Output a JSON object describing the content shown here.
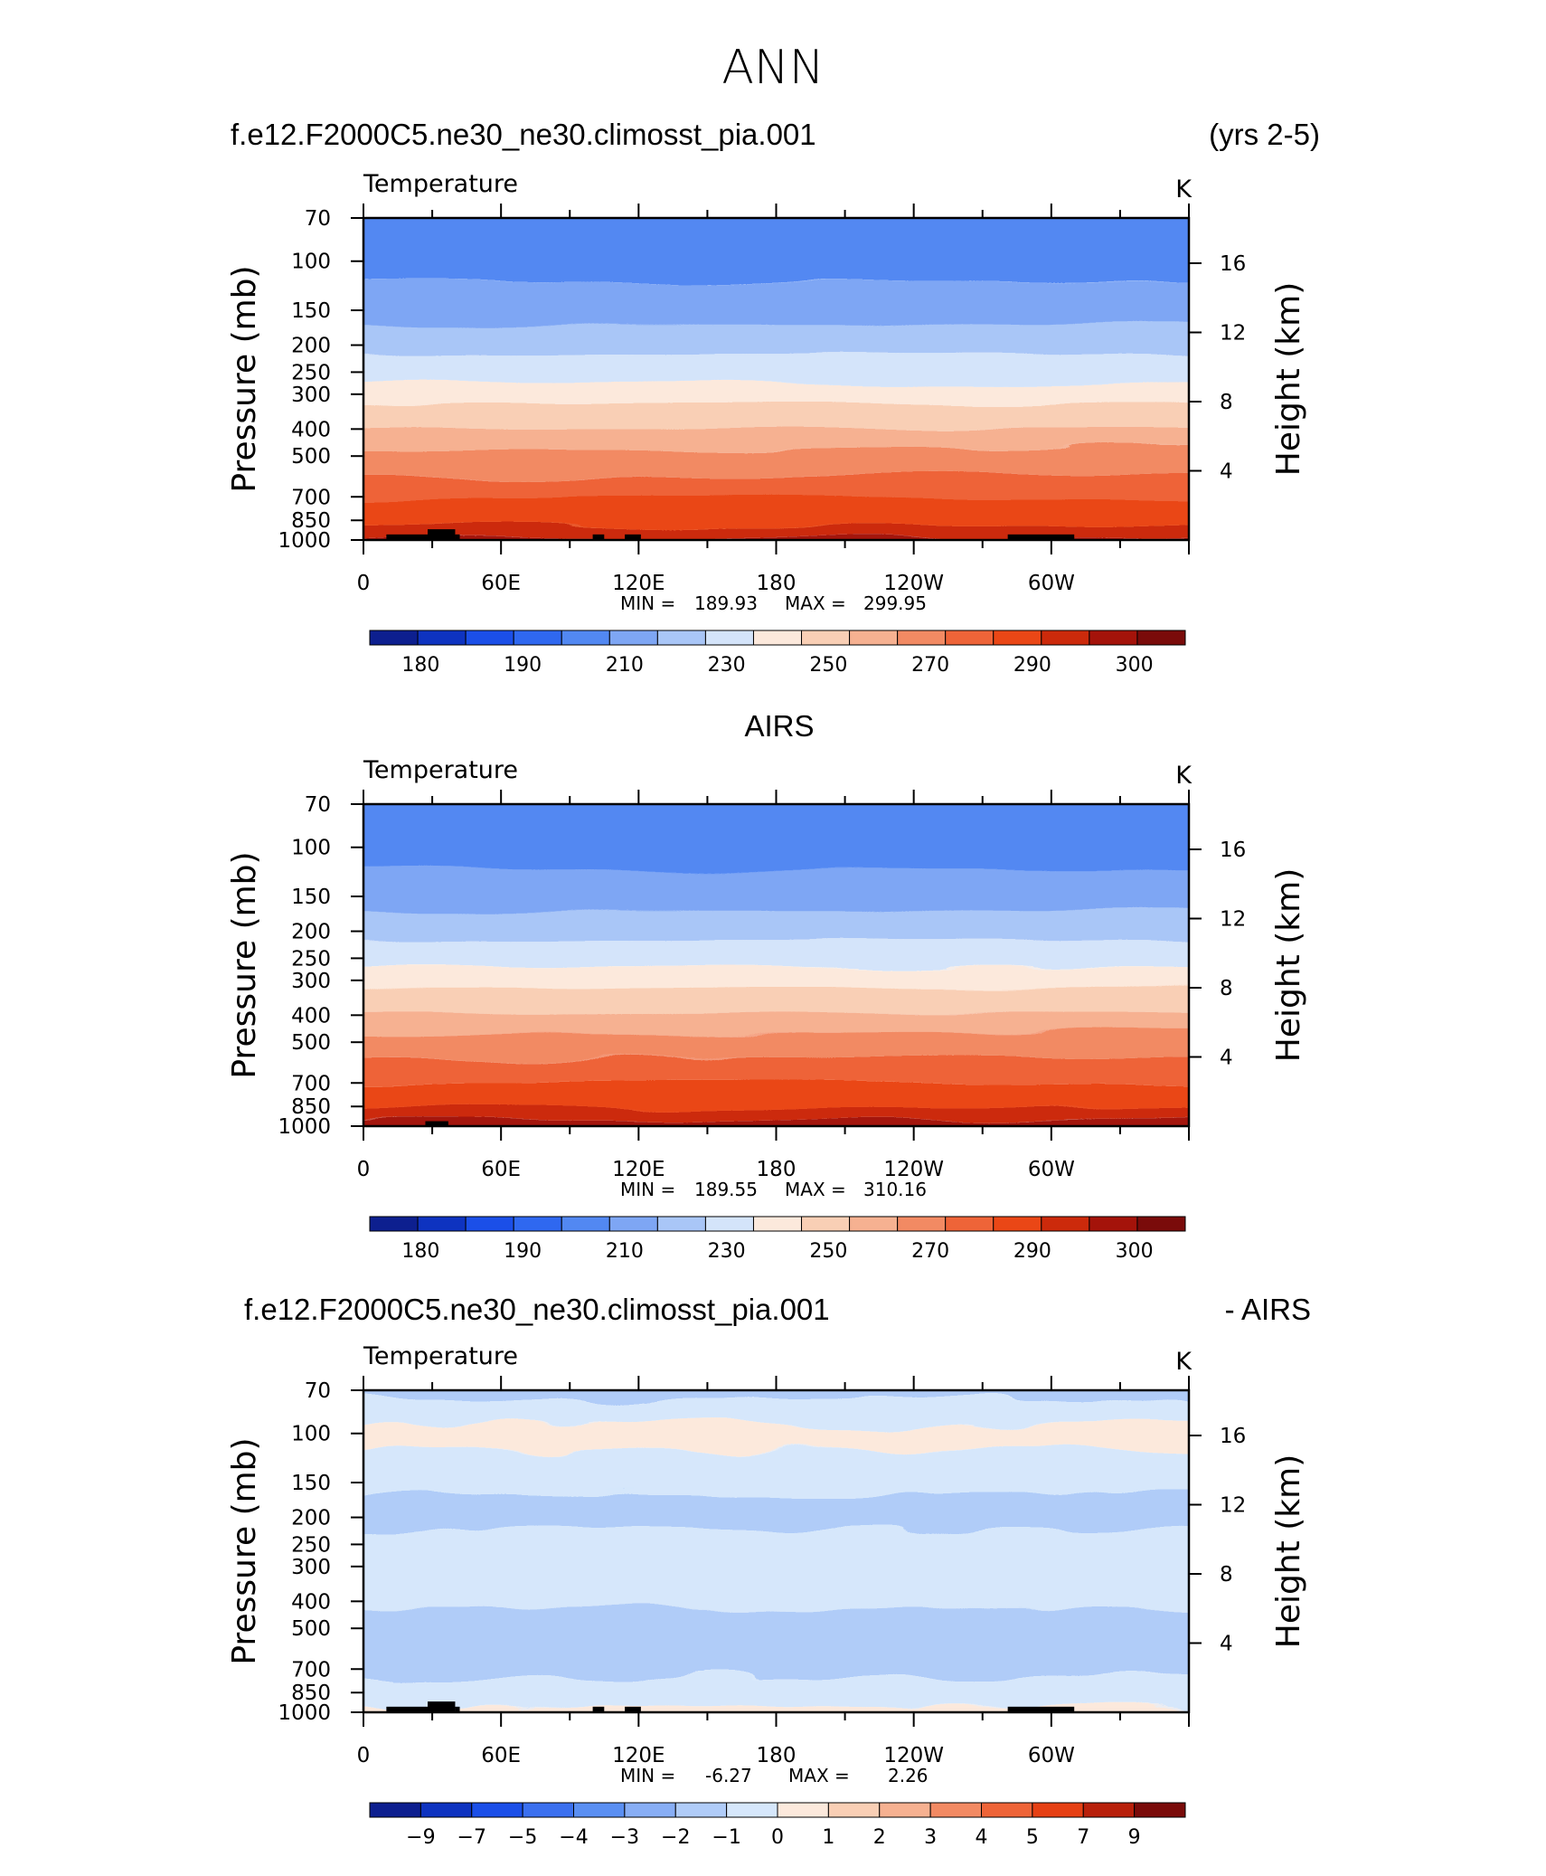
{
  "page": {
    "title": "ANN"
  },
  "colors": {
    "temperature_scale": [
      "#0d1f8f",
      "#0e33c0",
      "#1b4fe8",
      "#2f68f0",
      "#5288f2",
      "#7ea6f4",
      "#a9c6f7",
      "#d4e4fa",
      "#fce9dc",
      "#f9cfb5",
      "#f6b191",
      "#f28a63",
      "#ee6438",
      "#ea4716",
      "#cc2a0b",
      "#a4130a",
      "#7a0b0a"
    ],
    "difference_scale": [
      "#0d1f8f",
      "#0e33c0",
      "#1b4fe8",
      "#3b70ef",
      "#5a8ff2",
      "#88aef5",
      "#b0ccf8",
      "#d6e7fb",
      "#fce9dc",
      "#f9cfb5",
      "#f6b191",
      "#f28a63",
      "#ee6438",
      "#e64014",
      "#b8200b",
      "#7a0b0a"
    ],
    "land_mask": "#000000"
  },
  "panels": [
    {
      "left_title": "f.e12.F2000C5.ne30_ne30.climosst_pia.001",
      "right_title": "(yrs 2-5)",
      "center_title": "",
      "variable": "Temperature",
      "units": "K",
      "stats": {
        "min_label": "MIN =",
        "min": "189.93",
        "max_label": "MAX =",
        "max": "299.95"
      },
      "colorbar_labels": [
        "180",
        "190",
        "210",
        "230",
        "250",
        "270",
        "290",
        "300"
      ]
    },
    {
      "left_title": "",
      "right_title": "",
      "center_title": "AIRS",
      "variable": "Temperature",
      "units": "K",
      "stats": {
        "min_label": "MIN =",
        "min": "189.55",
        "max_label": "MAX =",
        "max": "310.16"
      },
      "colorbar_labels": [
        "180",
        "190",
        "210",
        "230",
        "250",
        "270",
        "290",
        "300"
      ]
    },
    {
      "left_title": "f.e12.F2000C5.ne30_ne30.climosst_pia.001",
      "right_title": "- AIRS",
      "center_title": "",
      "variable": "Temperature",
      "units": "K",
      "stats": {
        "min_label": "MIN =",
        "min": "-6.27",
        "max_label": "MAX =",
        "max": "2.26"
      },
      "colorbar_labels": [
        "−9",
        "−7",
        "−5",
        "−4",
        "−3",
        "−2",
        "−1",
        "0",
        "1",
        "2",
        "3",
        "4",
        "5",
        "7",
        "9"
      ]
    }
  ],
  "chart_data": [
    {
      "type": "heatmap",
      "title": "Temperature",
      "units": "K",
      "xlabel": "",
      "ylabel": "Pressure (mb)",
      "y2label": "Height (km)",
      "xticks": [
        "0",
        "60E",
        "120E",
        "180",
        "120W",
        "60W"
      ],
      "xtick_longitudes": [
        0,
        60,
        120,
        180,
        240,
        300
      ],
      "xlim": [
        0,
        360
      ],
      "yticks": [
        "70",
        "100",
        "150",
        "200",
        "250",
        "300",
        "400",
        "500",
        "700",
        "850",
        "1000"
      ],
      "ylim": [
        1000,
        70
      ],
      "yscale": "log",
      "y2ticks": [
        "16",
        "12",
        "8",
        "4"
      ],
      "colorbar_levels": [
        180,
        190,
        210,
        230,
        250,
        270,
        290,
        300
      ],
      "min": 189.93,
      "max": 299.95,
      "profile_pressure_mb": [
        70,
        100,
        150,
        200,
        250,
        300,
        400,
        500,
        700,
        850,
        1000
      ],
      "profile_temperature_K": [
        198,
        196,
        206,
        217,
        226,
        235,
        251,
        263,
        279,
        288,
        296
      ]
    },
    {
      "type": "heatmap",
      "title": "Temperature",
      "units": "K",
      "xlabel": "",
      "ylabel": "Pressure (mb)",
      "y2label": "Height (km)",
      "xticks": [
        "0",
        "60E",
        "120E",
        "180",
        "120W",
        "60W"
      ],
      "xtick_longitudes": [
        0,
        60,
        120,
        180,
        240,
        300
      ],
      "xlim": [
        0,
        360
      ],
      "yticks": [
        "70",
        "100",
        "150",
        "200",
        "250",
        "300",
        "400",
        "500",
        "700",
        "850",
        "1000"
      ],
      "ylim": [
        1000,
        70
      ],
      "yscale": "log",
      "y2ticks": [
        "16",
        "12",
        "8",
        "4"
      ],
      "colorbar_levels": [
        180,
        190,
        210,
        230,
        250,
        270,
        290,
        300
      ],
      "min": 189.55,
      "max": 310.16,
      "profile_pressure_mb": [
        70,
        100,
        150,
        200,
        250,
        300,
        400,
        500,
        700,
        850,
        1000
      ],
      "profile_temperature_K": [
        198,
        195,
        206,
        217,
        226,
        236,
        252,
        264,
        280,
        290,
        298
      ]
    },
    {
      "type": "heatmap",
      "title": "Temperature",
      "units": "K",
      "xlabel": "",
      "ylabel": "Pressure (mb)",
      "y2label": "Height (km)",
      "xticks": [
        "0",
        "60E",
        "120E",
        "180",
        "120W",
        "60W"
      ],
      "xtick_longitudes": [
        0,
        60,
        120,
        180,
        240,
        300
      ],
      "xlim": [
        0,
        360
      ],
      "yticks": [
        "70",
        "100",
        "150",
        "200",
        "250",
        "300",
        "400",
        "500",
        "700",
        "850",
        "1000"
      ],
      "ylim": [
        1000,
        70
      ],
      "yscale": "log",
      "y2ticks": [
        "16",
        "12",
        "8",
        "4"
      ],
      "colorbar_levels": [
        -9,
        -7,
        -5,
        -4,
        -3,
        -2,
        -1,
        0,
        1,
        2,
        3,
        4,
        5,
        7,
        9
      ],
      "min": -6.27,
      "max": 2.26,
      "profile_pressure_mb": [
        70,
        100,
        150,
        200,
        250,
        300,
        400,
        500,
        700,
        850,
        1000
      ],
      "profile_difference_K": [
        -1.2,
        0.4,
        -0.8,
        -1.5,
        -0.3,
        -0.6,
        -0.9,
        -1.4,
        -1.2,
        -0.6,
        0.3
      ]
    }
  ]
}
